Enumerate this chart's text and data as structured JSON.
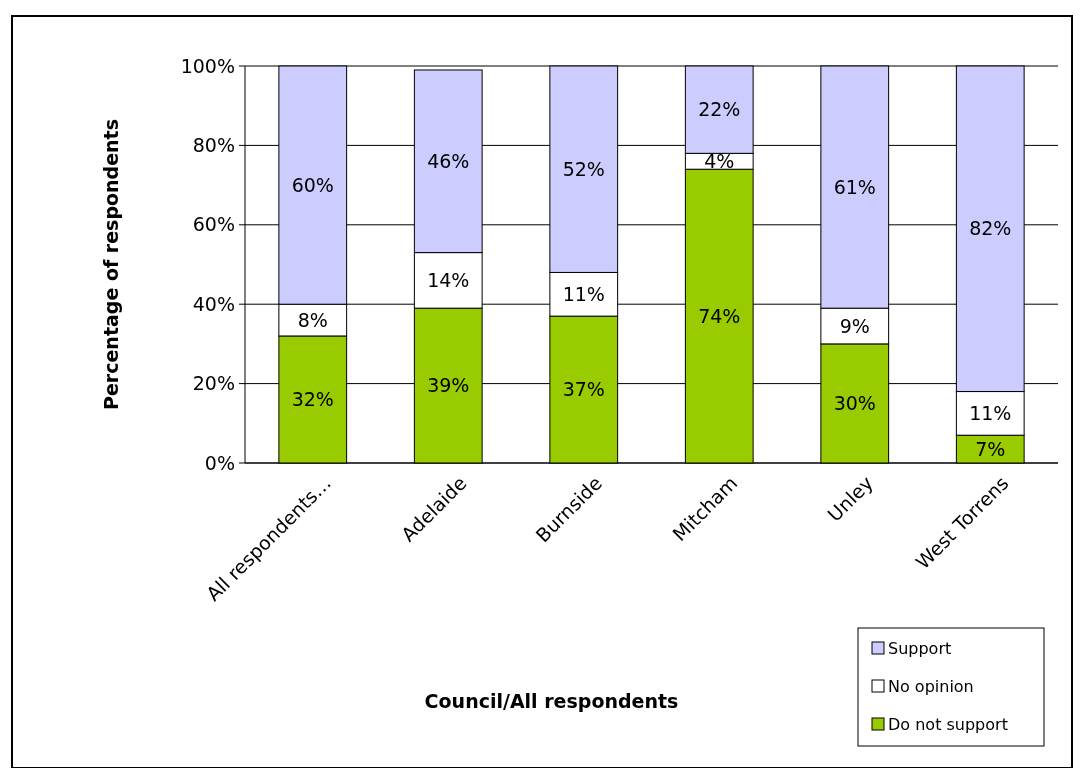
{
  "chart_data": {
    "type": "bar",
    "stacked": true,
    "xlabel": "Council/All respondents",
    "ylabel": "Percentage of respondents",
    "categories": [
      "All respondents…",
      "Adelaide",
      "Burnside",
      "Mitcham",
      "Unley",
      "West Torrens"
    ],
    "series": [
      {
        "name": "Do not support",
        "color": "#99cc00",
        "values": [
          32,
          39,
          37,
          74,
          30,
          7
        ],
        "value_labels": [
          "32%",
          "39%",
          "37%",
          "74%",
          "30%",
          "7%"
        ]
      },
      {
        "name": "No opinion",
        "color": "#ffffff",
        "values": [
          8,
          14,
          11,
          4,
          9,
          11
        ],
        "value_labels": [
          "8%",
          "14%",
          "11%",
          "4%",
          "9%",
          "11%"
        ]
      },
      {
        "name": "Support",
        "color": "#ccccff",
        "values": [
          60,
          46,
          52,
          22,
          61,
          82
        ],
        "value_labels": [
          "60%",
          "46%",
          "52%",
          "22%",
          "61%",
          "82%"
        ]
      }
    ],
    "ylim": [
      0,
      100
    ],
    "yticks": [
      {
        "value": 0,
        "label": "0%"
      },
      {
        "value": 20,
        "label": "20%"
      },
      {
        "value": 40,
        "label": "40%"
      },
      {
        "value": 60,
        "label": "60%"
      },
      {
        "value": 80,
        "label": "80%"
      },
      {
        "value": 100,
        "label": "100%"
      }
    ],
    "grid": "y",
    "legend": "bottom right"
  }
}
